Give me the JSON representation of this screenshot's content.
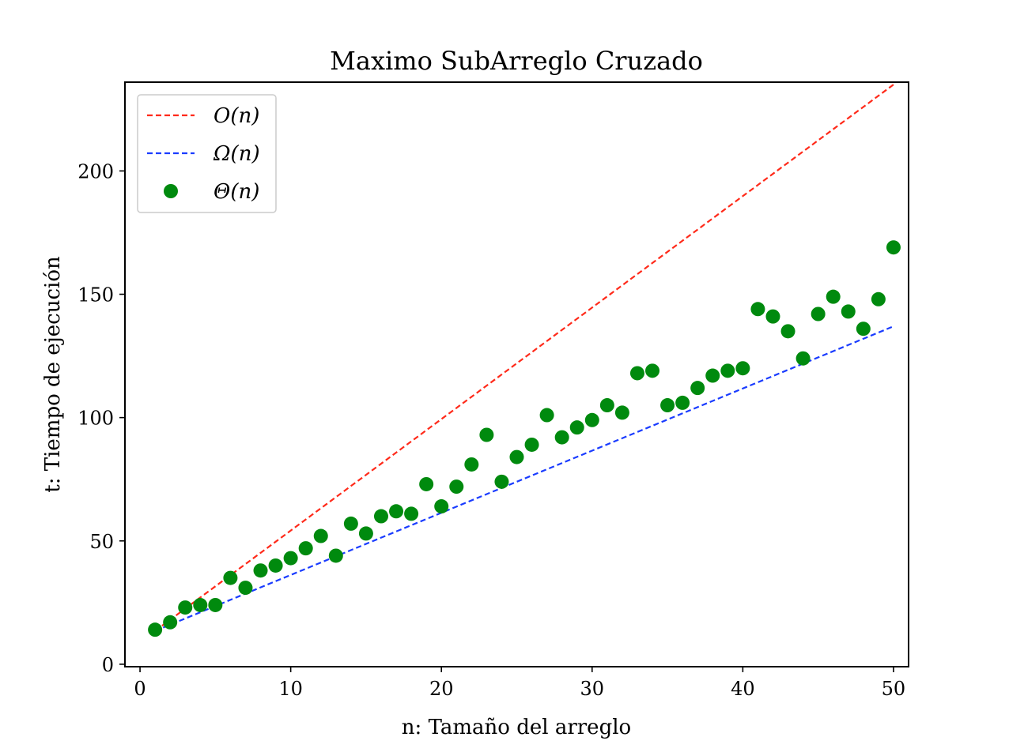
{
  "chart_data": {
    "type": "line",
    "title": "Maximo SubArreglo Cruzado",
    "xlabel": "n: Tamaño del arreglo",
    "ylabel": "t: Tiempo de ejecución",
    "xlim": [
      -1,
      51
    ],
    "ylim": [
      -1,
      236
    ],
    "xticks": [
      0,
      10,
      20,
      30,
      40,
      50
    ],
    "yticks": [
      0,
      50,
      100,
      150,
      200
    ],
    "grid": false,
    "legend_position": "top-left",
    "series": [
      {
        "name": "O(n)",
        "kind": "dashed-line",
        "color": "#ff2a1a",
        "x": [
          1,
          50
        ],
        "y": [
          13.5,
          235
        ]
      },
      {
        "name": "Ω(n)",
        "kind": "dashed-line",
        "color": "#1a3cff",
        "x": [
          1,
          50
        ],
        "y": [
          13.5,
          137
        ]
      },
      {
        "name": "Θ(n)",
        "kind": "scatter",
        "color": "#008a0e",
        "x": [
          1,
          2,
          3,
          4,
          5,
          6,
          7,
          8,
          9,
          10,
          11,
          12,
          13,
          14,
          15,
          16,
          17,
          18,
          19,
          20,
          21,
          22,
          23,
          24,
          25,
          26,
          27,
          28,
          29,
          30,
          31,
          32,
          33,
          34,
          35,
          36,
          37,
          38,
          39,
          40,
          41,
          42,
          43,
          44,
          45,
          46,
          47,
          48,
          49,
          50
        ],
        "y": [
          14,
          17,
          23,
          24,
          24,
          35,
          31,
          38,
          40,
          43,
          47,
          52,
          44,
          57,
          53,
          60,
          62,
          61,
          73,
          64,
          72,
          81,
          93,
          74,
          84,
          89,
          101,
          92,
          96,
          99,
          105,
          102,
          118,
          119,
          105,
          106,
          112,
          117,
          119,
          120,
          144,
          141,
          135,
          124,
          142,
          149,
          143,
          136,
          148,
          169
        ]
      }
    ]
  }
}
